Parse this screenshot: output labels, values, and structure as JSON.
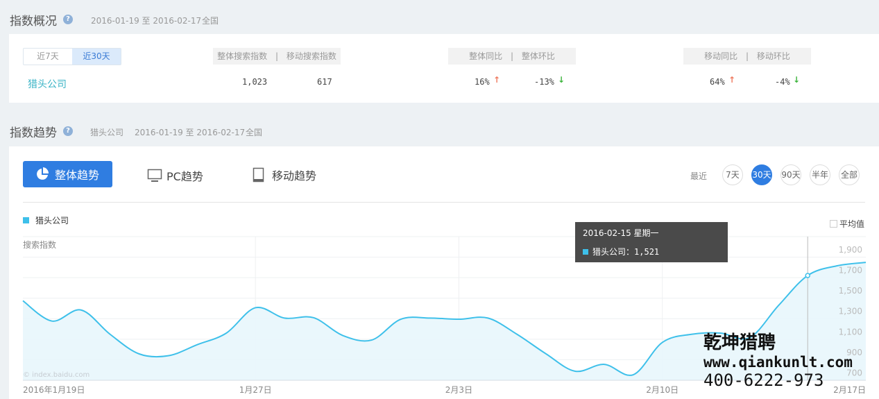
{
  "overview": {
    "title": "指数概况",
    "date_range": "2016-01-19 至 2016-02-17",
    "region": "全国",
    "range_tabs": [
      {
        "label": "近7天",
        "active": false
      },
      {
        "label": "近30天",
        "active": true
      }
    ],
    "keyword": "猎头公司",
    "headers": {
      "search": [
        "整体搜索指数",
        "移动搜索指数"
      ],
      "overall": [
        "整体同比",
        "整体环比"
      ],
      "mobile": [
        "移动同比",
        "移动环比"
      ]
    },
    "values": {
      "overall_search": "1,023",
      "mobile_search": "617",
      "overall_yoy": "16%",
      "overall_yoy_dir": "up",
      "overall_mom": "-13%",
      "overall_mom_dir": "down",
      "mobile_yoy": "64%",
      "mobile_yoy_dir": "up",
      "mobile_mom": "-4%",
      "mobile_mom_dir": "down"
    },
    "separator": "|"
  },
  "trend": {
    "title": "指数趋势",
    "keyword": "猎头公司",
    "date_range": "2016-01-19 至 2016-02-17",
    "region": "全国",
    "tabs": [
      {
        "label": "整体趋势",
        "icon": "pie-chart-icon",
        "active": true
      },
      {
        "label": "PC趋势",
        "icon": "monitor-icon",
        "active": false
      },
      {
        "label": "移动趋势",
        "icon": "tablet-icon",
        "active": false
      }
    ],
    "recent_label": "最近",
    "periods": [
      {
        "label": "7天",
        "active": false
      },
      {
        "label": "30天",
        "active": true
      },
      {
        "label": "90天",
        "active": false
      },
      {
        "label": "半年",
        "active": false
      },
      {
        "label": "全部",
        "active": false
      }
    ],
    "average_label": "平均值",
    "average_checked": false
  },
  "tooltip": {
    "date": "2016-02-15 星期一",
    "series": "猎头公司：",
    "value": "1,521"
  },
  "watermark": {
    "name": "乾坤猎聘",
    "url": "www.qiankunlt.com",
    "phone": "400-6222-973"
  },
  "credit": "© index.baidu.com",
  "colors": {
    "series": "#3ec0ea",
    "fill": "#e8f6fc",
    "accent": "#2f7de1",
    "up": "#ef7a5f",
    "down": "#3cb43c"
  },
  "chart_data": {
    "type": "area",
    "ylabel": "搜索指数",
    "legend": [
      "猎头公司"
    ],
    "legend_position": "top-left",
    "grid": true,
    "ylim": [
      500,
      1900
    ],
    "yticks": [
      700,
      900,
      1100,
      1300,
      1500,
      1700,
      1900
    ],
    "ytick_labels": [
      "700",
      "900",
      "1,100",
      "1,300",
      "1,500",
      "1,700",
      "1,900"
    ],
    "x_tick_labels": [
      "2016年1月19日",
      "1月27日",
      "2月3日",
      "2月10日",
      "2月17日"
    ],
    "x_tick_dates": [
      "2016-01-19",
      "2016-01-27",
      "2016-02-03",
      "2016-02-10",
      "2016-02-17"
    ],
    "x_start": "2016-01-19",
    "x_end": "2016-02-17",
    "highlight_date": "2016-02-15",
    "series": [
      {
        "name": "猎头公司",
        "values": [
          1275,
          1077,
          1185,
          948,
          757,
          739,
          847,
          960,
          1207,
          1106,
          1110,
          937,
          892,
          1095,
          1106,
          1095,
          1106,
          948,
          757,
          588,
          655,
          554,
          869,
          948,
          960,
          915,
          1230,
          1521,
          1615,
          1649
        ]
      }
    ]
  }
}
